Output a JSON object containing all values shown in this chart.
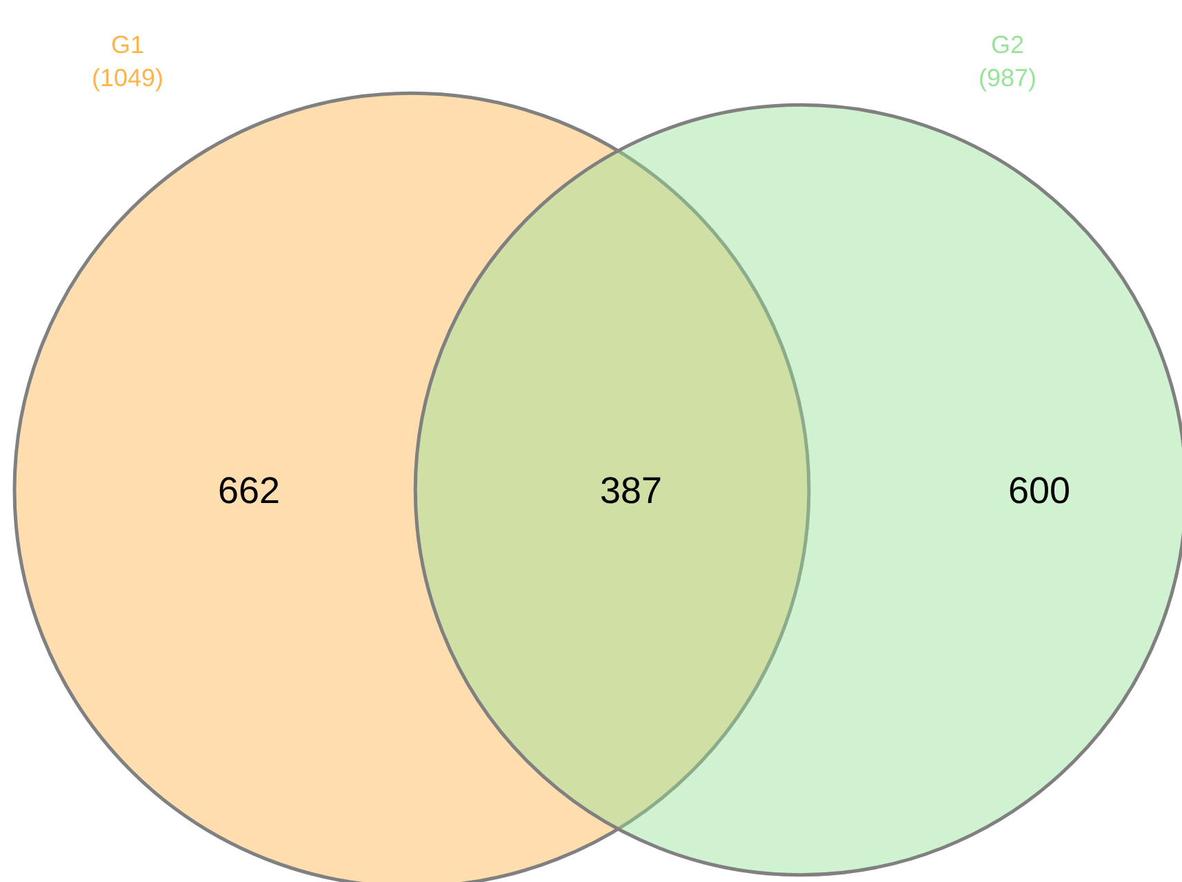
{
  "chart_data": {
    "type": "other",
    "categories": [
      "G1",
      "G2"
    ],
    "values": [
      1049,
      987
    ],
    "value_labels": [
      "(1049)",
      "(987)"
    ],
    "colors": [
      "#fdb44b",
      "#98e39a"
    ],
    "annotations": [
      "662",
      "387",
      "600"
    ]
  }
}
